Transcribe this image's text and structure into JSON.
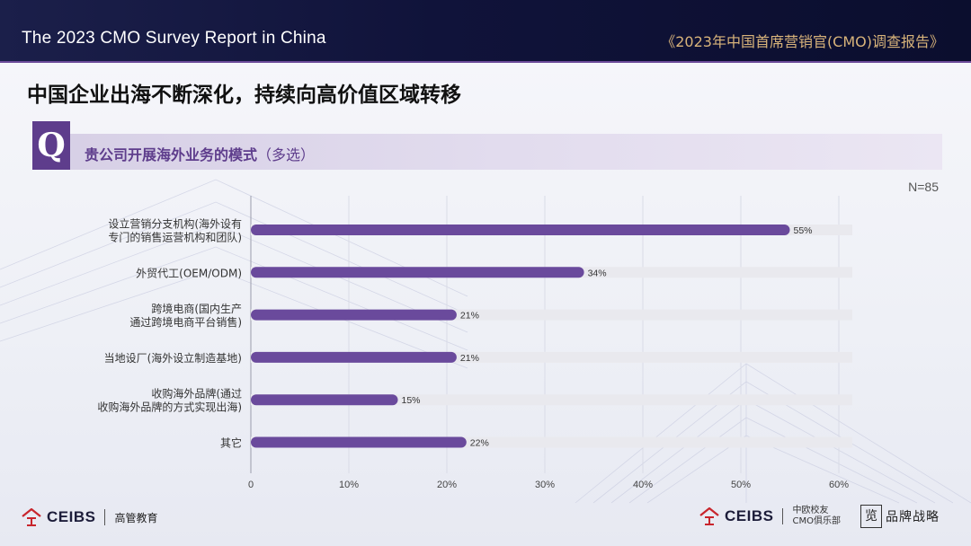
{
  "header": {
    "left_title": "The 2023 CMO Survey Report in China",
    "right_title": "《2023年中国首席营销官(CMO)调查报告》"
  },
  "page_title": "中国企业出海不断深化，持续向高价值区域转移",
  "question": {
    "badge": "Q",
    "text": "贵公司开展海外业务的模式",
    "note": "（多选）"
  },
  "sample_size": "N=85",
  "colors": {
    "bar": "#6a4a9c",
    "track": "#e9e9ee",
    "header_bg": "#10133a",
    "accent_gold": "#d8b37a",
    "q_purple": "#5e3d8c"
  },
  "chart_data": {
    "type": "bar",
    "orientation": "horizontal",
    "categories": [
      [
        "设立营销分支机构(海外设有",
        "专门的销售运营机构和团队)"
      ],
      [
        "外贸代工(OEM/ODM)"
      ],
      [
        "跨境电商(国内生产",
        "通过跨境电商平台销售)"
      ],
      [
        "当地设厂(海外设立制造基地)"
      ],
      [
        "收购海外品牌(通过",
        "收购海外品牌的方式实现出海)"
      ],
      [
        "其它"
      ]
    ],
    "values": [
      55,
      34,
      21,
      21,
      15,
      22
    ],
    "value_labels": [
      "55%",
      "34%",
      "21%",
      "21%",
      "15%",
      "22%"
    ],
    "xlim": [
      0,
      60
    ],
    "xticks": [
      0,
      10,
      20,
      30,
      40,
      50,
      60
    ],
    "xtick_labels": [
      "0",
      "10%",
      "20%",
      "30%",
      "40%",
      "50%",
      "60%"
    ],
    "grid": true
  },
  "footer": {
    "left_brand": "CEIBS",
    "left_sub": "高管教育",
    "right_brand": "CEIBS",
    "right_sub_1": "中欧校友",
    "right_sub_2": "CMO俱乐部",
    "brand_seal": "览",
    "brand_text": "品牌战略"
  }
}
